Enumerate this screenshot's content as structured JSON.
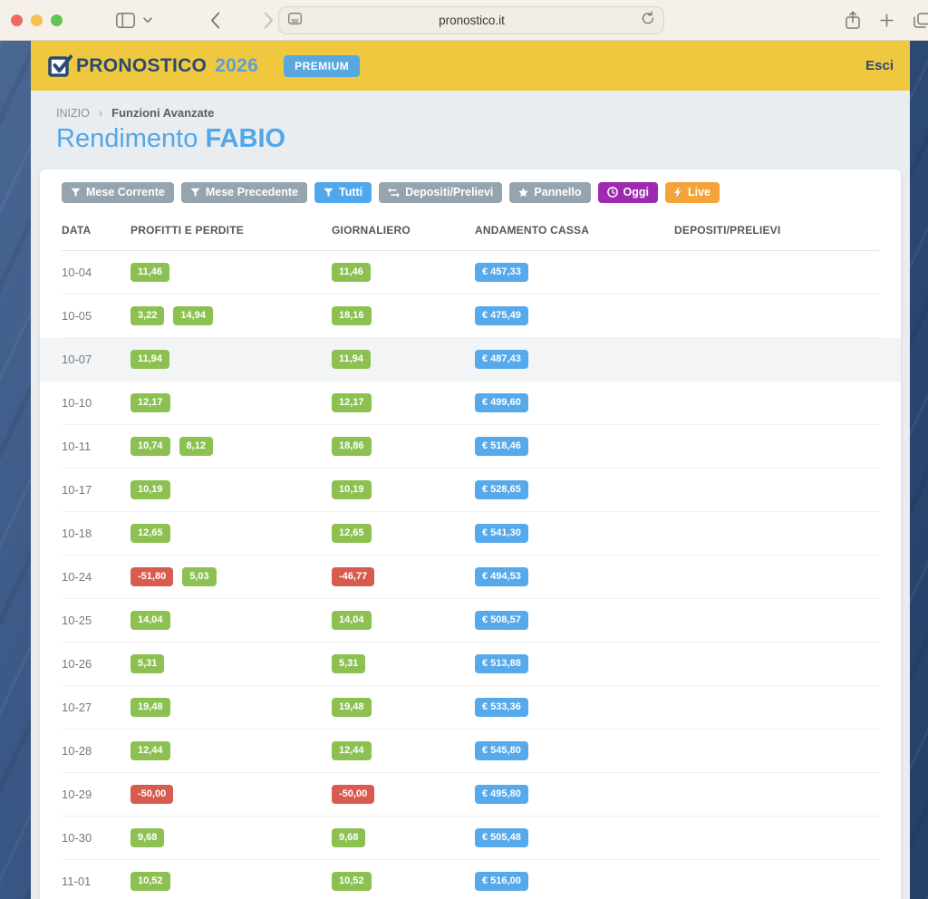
{
  "browser": {
    "url": "pronostico.it"
  },
  "site_header": {
    "brand": "PRONOSTICO",
    "brand_year": "2026",
    "premium_badge": "PREMIUM",
    "logout_label": "Esci"
  },
  "breadcrumb": {
    "root": "INIZIO",
    "separator": "›",
    "current": "Funzioni Avanzate"
  },
  "page_title": {
    "prefix": "Rendimento",
    "highlight": "FABIO"
  },
  "toolbar": {
    "buttons": [
      {
        "name": "filter-current-month-button",
        "label": "Mese Corrente",
        "icon": "filter-icon",
        "color": "#96a4ae"
      },
      {
        "name": "filter-previous-month-button",
        "label": "Mese Precedente",
        "icon": "filter-icon",
        "color": "#96a4ae"
      },
      {
        "name": "filter-all-button",
        "label": "Tutti",
        "icon": "filter-icon",
        "color": "#51a7ec"
      },
      {
        "name": "deposits-withdrawals-button",
        "label": "Depositi/Prelievi",
        "icon": "swap-icon",
        "color": "#96a4ae"
      },
      {
        "name": "panel-button",
        "label": "Pannello",
        "icon": "star-icon",
        "color": "#96a4ae"
      },
      {
        "name": "today-button",
        "label": "Oggi",
        "icon": "clock-icon",
        "color": "#9d2bb0"
      },
      {
        "name": "live-button",
        "label": "Live",
        "icon": "bolt-icon",
        "color": "#f3a43b"
      }
    ]
  },
  "table": {
    "columns": [
      "DATA",
      "PROFITTI E PERDITE",
      "GIORNALIERO",
      "ANDAMENTO CASSA",
      "DEPOSITI/PRELIEVI"
    ],
    "rows": [
      {
        "date": "10-04",
        "profits": [
          "11,46"
        ],
        "daily": "11,46",
        "cash": "€ 457,33",
        "deposits": "",
        "highlighted": false
      },
      {
        "date": "10-05",
        "profits": [
          "3,22",
          "14,94"
        ],
        "daily": "18,16",
        "cash": "€ 475,49",
        "deposits": "",
        "highlighted": false
      },
      {
        "date": "10-07",
        "profits": [
          "11,94"
        ],
        "daily": "11,94",
        "cash": "€ 487,43",
        "deposits": "",
        "highlighted": true
      },
      {
        "date": "10-10",
        "profits": [
          "12,17"
        ],
        "daily": "12,17",
        "cash": "€ 499,60",
        "deposits": "",
        "highlighted": false
      },
      {
        "date": "10-11",
        "profits": [
          "10,74",
          "8,12"
        ],
        "daily": "18,86",
        "cash": "€ 518,46",
        "deposits": "",
        "highlighted": false
      },
      {
        "date": "10-17",
        "profits": [
          "10,19"
        ],
        "daily": "10,19",
        "cash": "€ 528,65",
        "deposits": "",
        "highlighted": false
      },
      {
        "date": "10-18",
        "profits": [
          "12,65"
        ],
        "daily": "12,65",
        "cash": "€ 541,30",
        "deposits": "",
        "highlighted": false
      },
      {
        "date": "10-24",
        "profits": [
          "-51,80",
          "5,03"
        ],
        "daily": "-46,77",
        "cash": "€ 494,53",
        "deposits": "",
        "highlighted": false
      },
      {
        "date": "10-25",
        "profits": [
          "14,04"
        ],
        "daily": "14,04",
        "cash": "€ 508,57",
        "deposits": "",
        "highlighted": false
      },
      {
        "date": "10-26",
        "profits": [
          "5,31"
        ],
        "daily": "5,31",
        "cash": "€ 513,88",
        "deposits": "",
        "highlighted": false
      },
      {
        "date": "10-27",
        "profits": [
          "19,48"
        ],
        "daily": "19,48",
        "cash": "€ 533,36",
        "deposits": "",
        "highlighted": false
      },
      {
        "date": "10-28",
        "profits": [
          "12,44"
        ],
        "daily": "12,44",
        "cash": "€ 545,80",
        "deposits": "",
        "highlighted": false
      },
      {
        "date": "10-29",
        "profits": [
          "-50,00"
        ],
        "daily": "-50,00",
        "cash": "€ 495,80",
        "deposits": "",
        "highlighted": false
      },
      {
        "date": "10-30",
        "profits": [
          "9,68"
        ],
        "daily": "9,68",
        "cash": "€ 505,48",
        "deposits": "",
        "highlighted": false
      },
      {
        "date": "11-01",
        "profits": [
          "10,52"
        ],
        "daily": "10,52",
        "cash": "€ 516,00",
        "deposits": "",
        "highlighted": false
      }
    ]
  },
  "colors": {
    "positive_badge": "#8cc152",
    "negative_badge": "#d85b50",
    "cash_badge": "#56a9ea",
    "header_yellow": "#f0c840",
    "brand_navy": "#2b4a73",
    "accent_blue": "#51a7ec"
  }
}
